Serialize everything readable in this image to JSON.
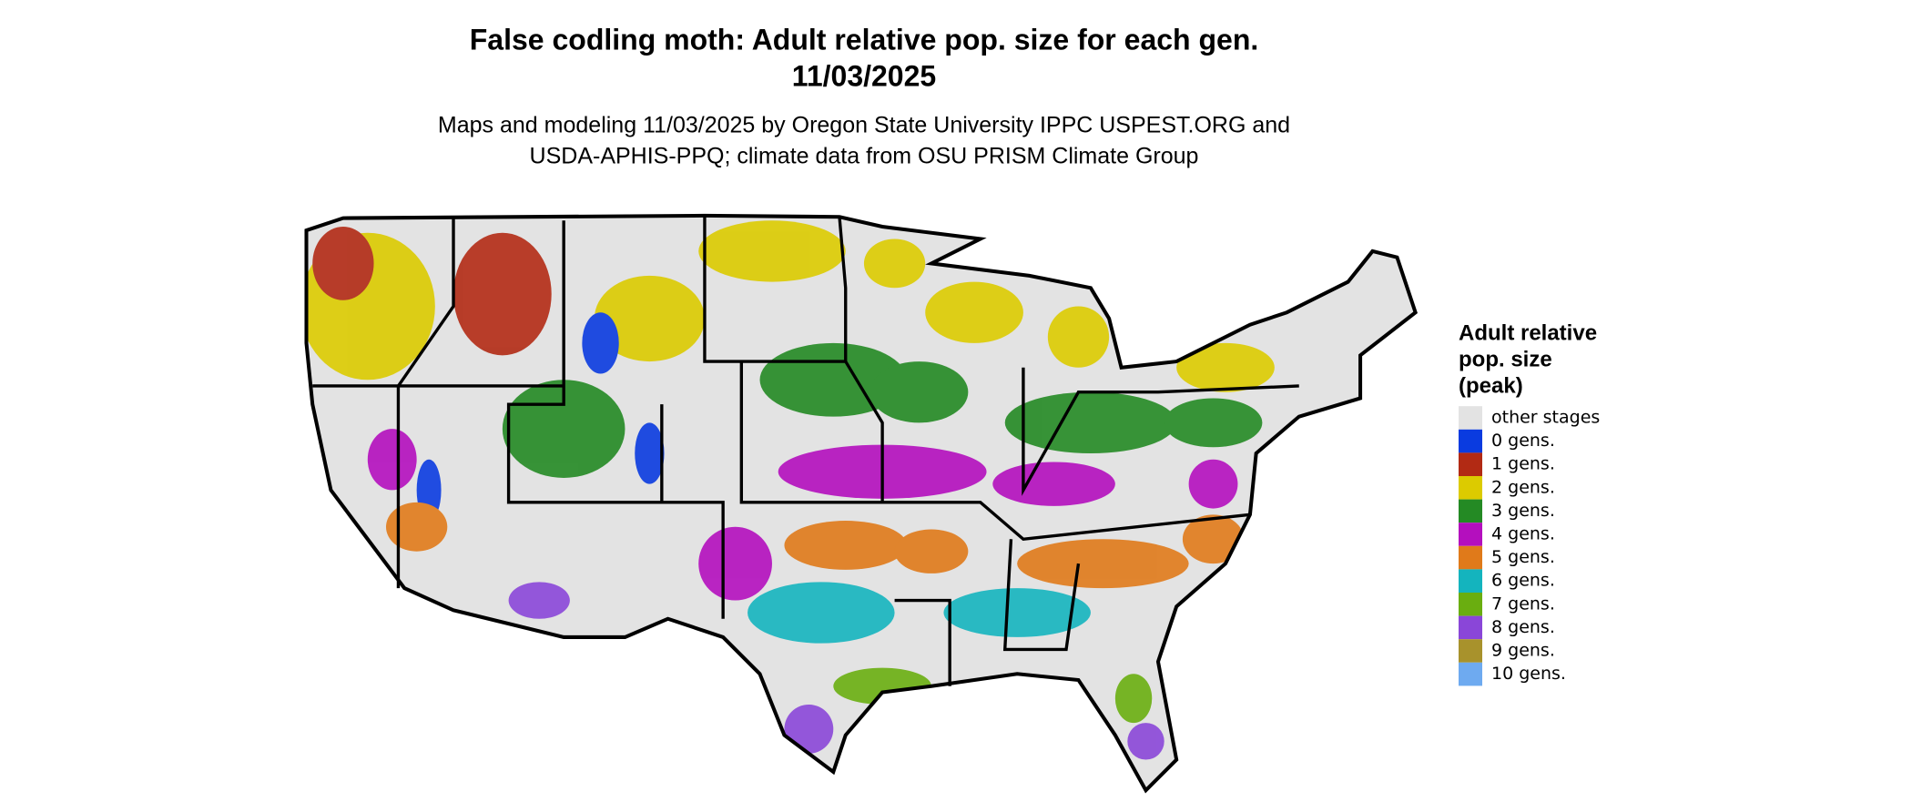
{
  "header": {
    "title_lines": [
      "False codling moth: Adult relative pop. size for each gen.",
      "11/03/2025"
    ],
    "subtitle_lines": [
      "Maps and modeling 11/03/2025 by Oregon State University IPPC USPEST.ORG and",
      "USDA-APHIS-PPQ; climate data from OSU PRISM Climate Group"
    ]
  },
  "legend": {
    "title_lines": [
      "Adult relative",
      "pop. size",
      "(peak)"
    ],
    "items": [
      {
        "label": "other stages",
        "color": "#e3e3e3"
      },
      {
        "label": "0 gens.",
        "color": "#0a3be0"
      },
      {
        "label": "1 gens.",
        "color": "#b22a14"
      },
      {
        "label": "2 gens.",
        "color": "#dccb00"
      },
      {
        "label": "3 gens.",
        "color": "#248a24"
      },
      {
        "label": "4 gens.",
        "color": "#b40fbe"
      },
      {
        "label": "5 gens.",
        "color": "#e07a1a"
      },
      {
        "label": "6 gens.",
        "color": "#14b4be"
      },
      {
        "label": "7 gens.",
        "color": "#6aae10"
      },
      {
        "label": "8 gens.",
        "color": "#8a46d8"
      },
      {
        "label": "9 gens.",
        "color": "#a8922c"
      },
      {
        "label": "10 gens.",
        "color": "#6eaaf0"
      }
    ]
  }
}
